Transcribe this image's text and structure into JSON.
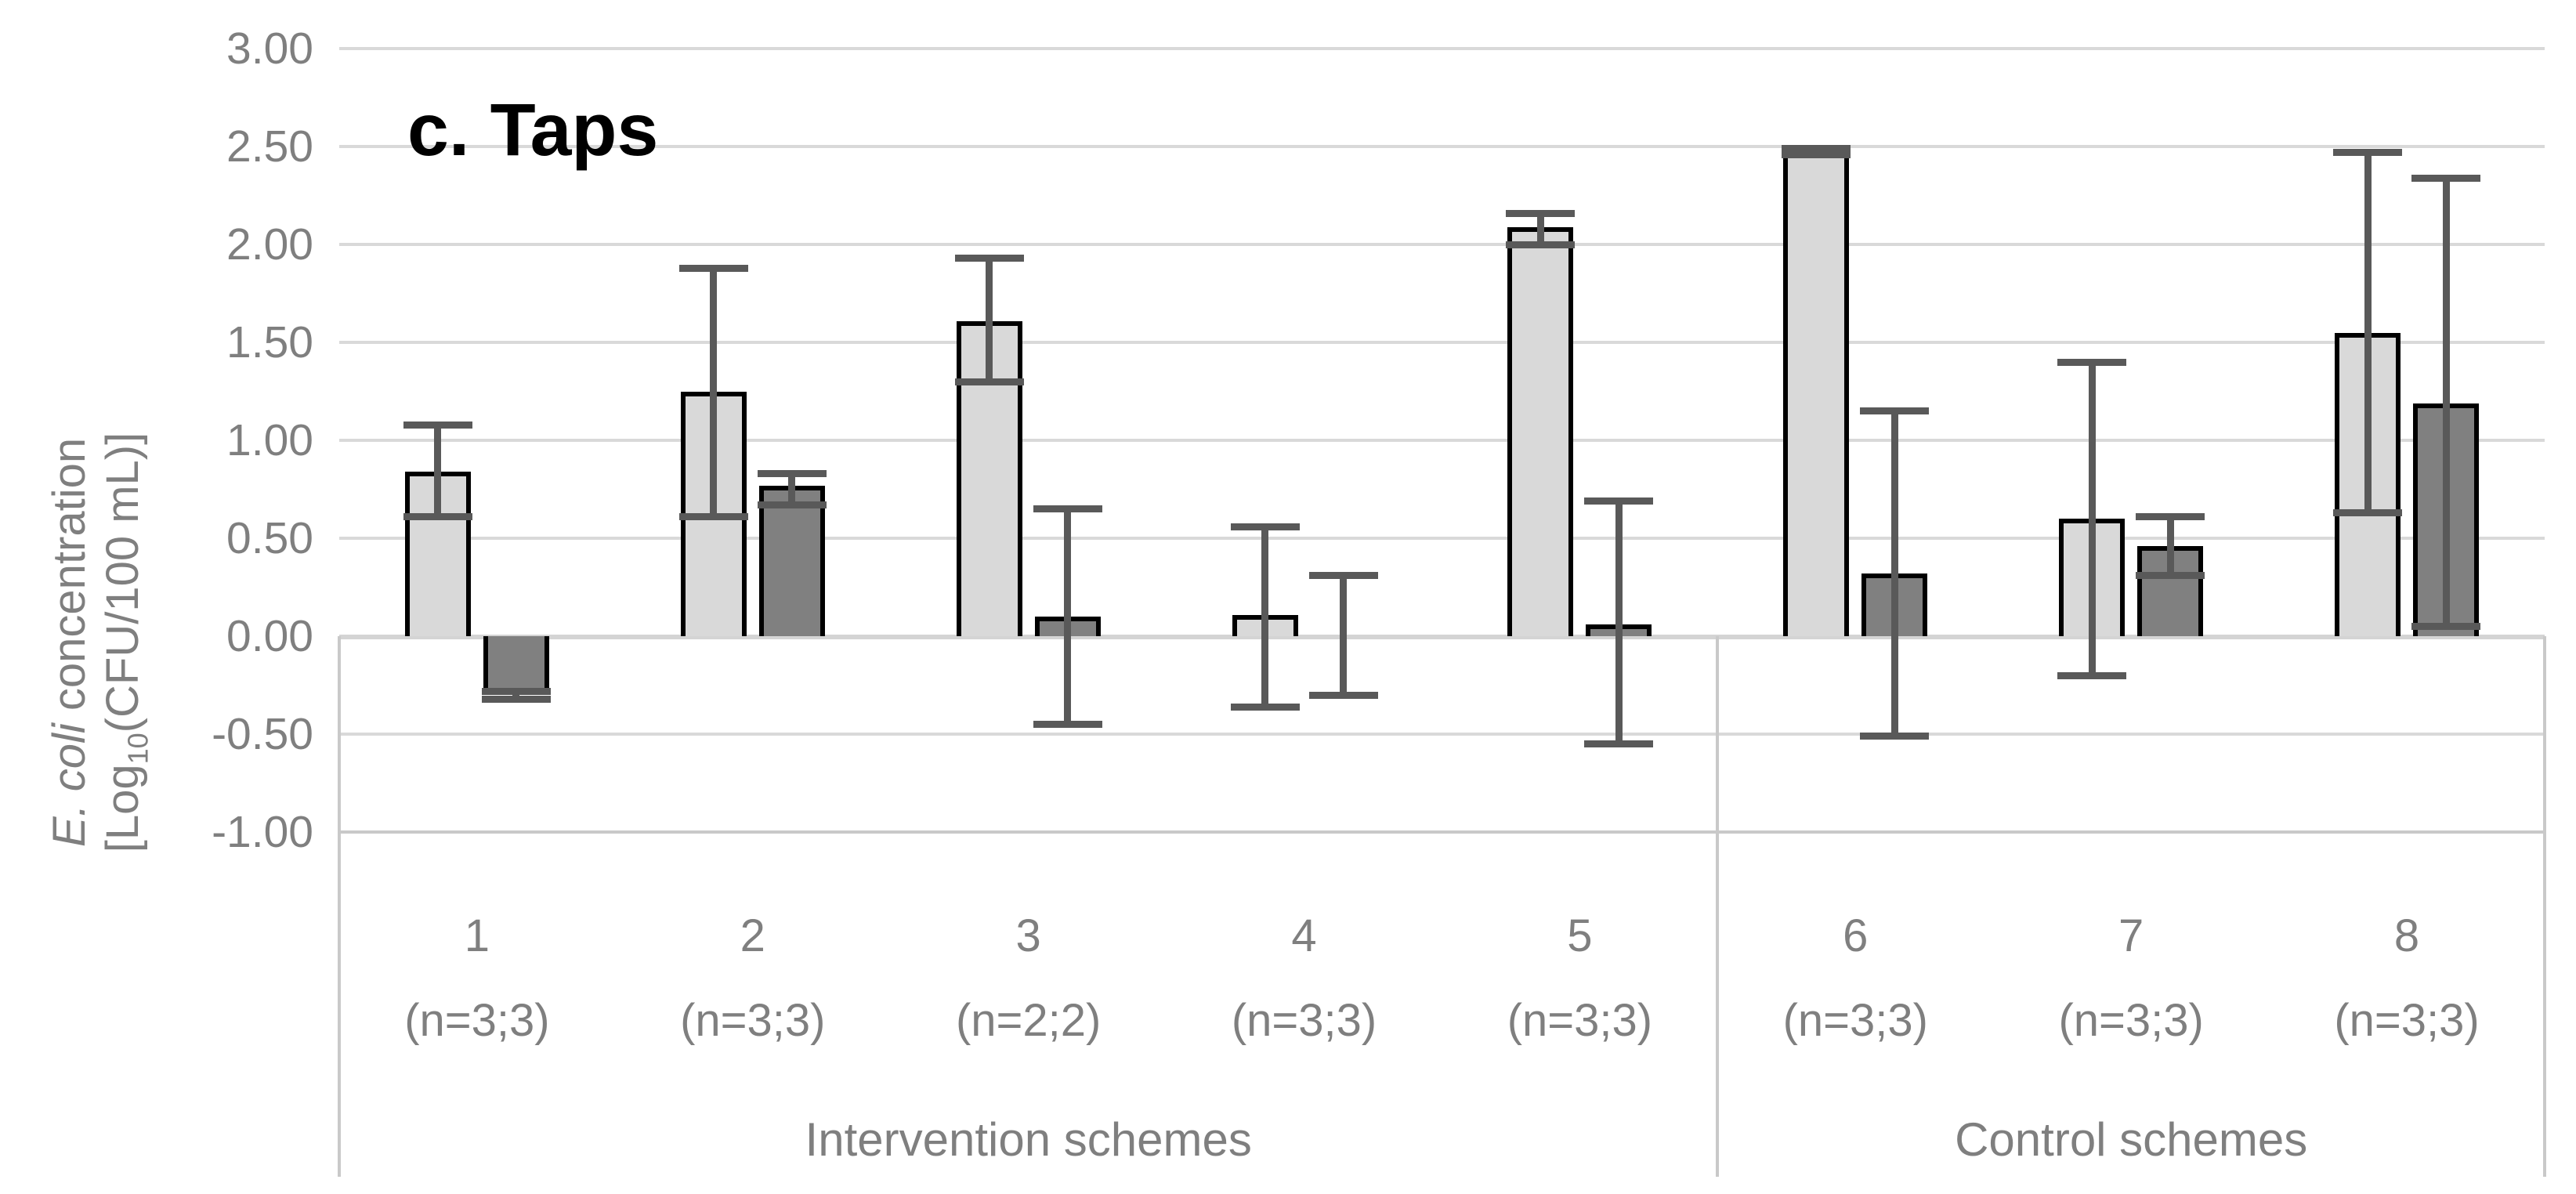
{
  "title": "c. Taps",
  "y_axis": {
    "title_line1_italic": "E. coli",
    "title_line1_rest": " concentration",
    "title_line2_prefix": "[Log",
    "title_line2_subscript": "10",
    "title_line2_suffix": "(CFU/100 mL)]",
    "tick_labels": [
      "3.00",
      "2.50",
      "2.00",
      "1.50",
      "1.00",
      "0.50",
      "0.00",
      "-0.50",
      "-1.00"
    ]
  },
  "x_axis": {
    "categories": [
      {
        "scheme": "1",
        "n": "(n=3;3)",
        "group": "intervention"
      },
      {
        "scheme": "2",
        "n": "(n=3;3)",
        "group": "intervention"
      },
      {
        "scheme": "3",
        "n": "(n=2;2)",
        "group": "intervention"
      },
      {
        "scheme": "4",
        "n": "(n=3;3)",
        "group": "intervention"
      },
      {
        "scheme": "5",
        "n": "(n=3;3)",
        "group": "intervention"
      },
      {
        "scheme": "6",
        "n": "(n=3;3)",
        "group": "control"
      },
      {
        "scheme": "7",
        "n": "(n=3;3)",
        "group": "control"
      },
      {
        "scheme": "8",
        "n": "(n=3;3)",
        "group": "control"
      }
    ],
    "group_labels": {
      "intervention": "Intervention schemes",
      "control": "Control schemes"
    }
  },
  "chart_data": {
    "type": "bar",
    "title": "c. Taps",
    "ylabel": "E. coli concentration [Log10(CFU/100 mL)]",
    "ylim": [
      -1.0,
      3.0
    ],
    "ytick_step": 0.5,
    "grid": true,
    "legend": "none",
    "categories": [
      "1 (n=3;3)",
      "2 (n=3;3)",
      "3 (n=2;2)",
      "4 (n=3;3)",
      "5 (n=3;3)",
      "6 (n=3;3)",
      "7 (n=3;3)",
      "8 (n=3;3)"
    ],
    "category_groups": [
      {
        "label": "Intervention schemes",
        "category_indices": [
          0,
          1,
          2,
          3,
          4
        ]
      },
      {
        "label": "Control schemes",
        "category_indices": [
          5,
          6,
          7
        ]
      }
    ],
    "series": [
      {
        "name": "light-gray-bars",
        "fill": "#d9d9d9",
        "values": [
          0.84,
          1.25,
          1.61,
          0.11,
          2.09,
          2.48,
          0.6,
          1.55
        ],
        "error_low": [
          0.61,
          0.61,
          1.3,
          -0.36,
          2.0,
          2.46,
          -0.2,
          0.63
        ],
        "error_high": [
          1.08,
          1.88,
          1.93,
          0.56,
          2.16,
          2.49,
          1.4,
          2.47
        ]
      },
      {
        "name": "dark-gray-bars",
        "fill": "#808080",
        "values": [
          -0.3,
          0.77,
          0.1,
          0.0,
          0.06,
          0.32,
          0.46,
          1.19
        ],
        "error_low": [
          -0.32,
          0.67,
          -0.45,
          -0.3,
          -0.55,
          -0.51,
          0.31,
          0.05
        ],
        "error_high": [
          -0.28,
          0.83,
          0.65,
          0.31,
          0.69,
          1.15,
          0.61,
          2.34
        ]
      }
    ],
    "colors": {
      "bar_border": "#000000",
      "error_bar": "#595959",
      "gridline": "#d9d9d9",
      "axis_boundary": "#c9c9c9",
      "text": "#7f7f7f",
      "title_text": "#000000"
    }
  }
}
